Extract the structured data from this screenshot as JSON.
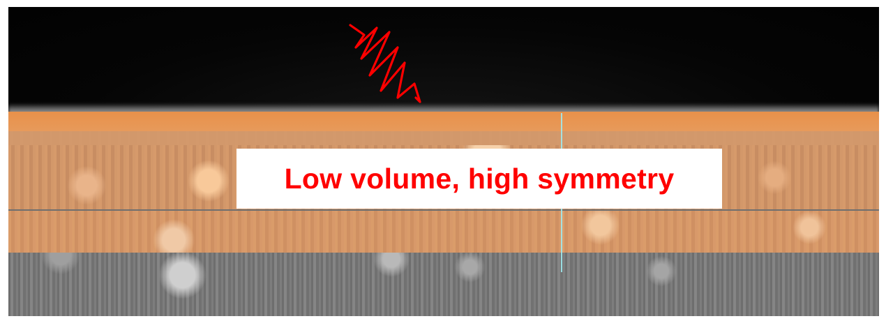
{
  "annotation": {
    "text": "Low volume, high symmetry",
    "text_color": "#ff0000",
    "box_color": "#ffffff"
  },
  "image": {
    "overlay_color": "#e8914a",
    "scan_line_color": "#9fe9ee",
    "wave_icon": "red-waveform-icon",
    "wave_color": "#ff0000"
  }
}
